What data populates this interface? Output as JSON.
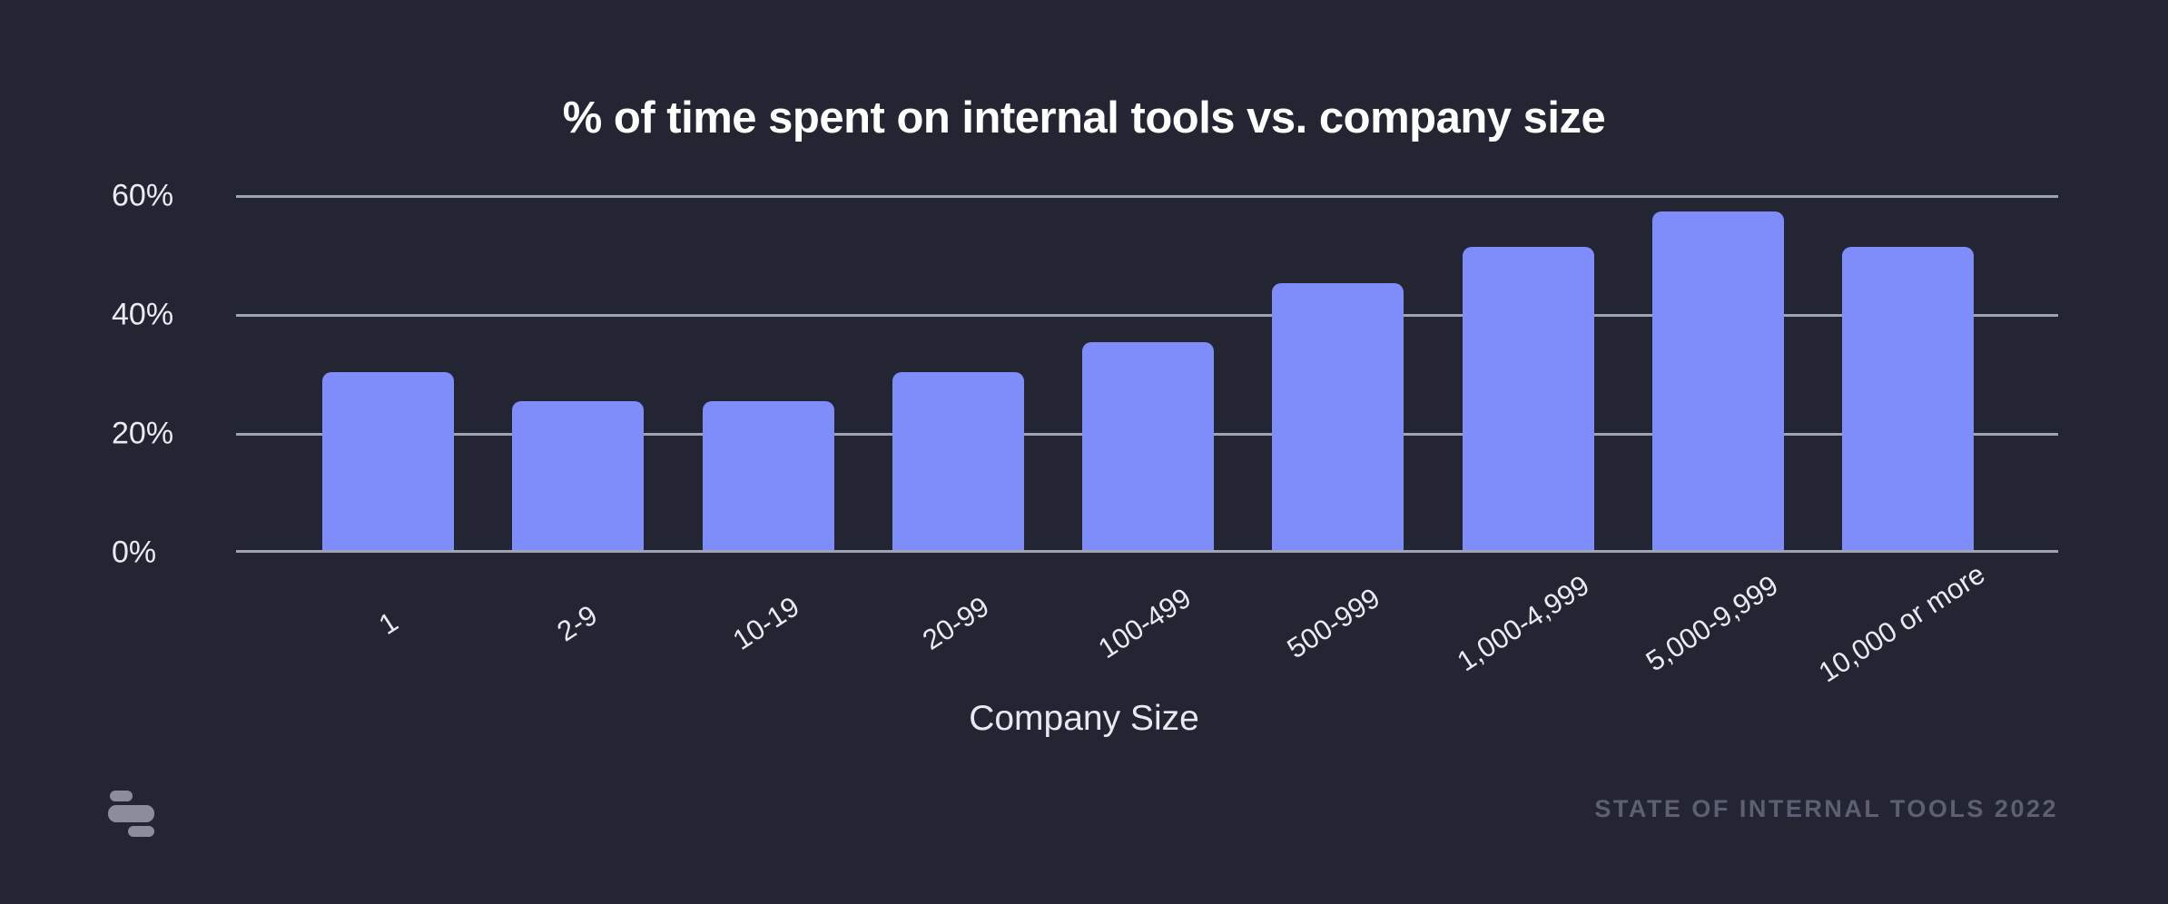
{
  "chart_data": {
    "type": "bar",
    "title": "% of time spent on internal tools vs. company size",
    "xlabel": "Company Size",
    "ylabel": "",
    "categories": [
      "1",
      "2-9",
      "10-19",
      "20-99",
      "100-499",
      "500-999",
      "1,000-4,999",
      "5,000-9,999",
      "10,000 or more"
    ],
    "values": [
      30,
      25,
      25,
      30,
      35,
      45,
      51,
      57,
      51
    ],
    "yticks": [
      {
        "value": 0,
        "label": "0%"
      },
      {
        "value": 20,
        "label": "20%"
      },
      {
        "value": 40,
        "label": "40%"
      },
      {
        "value": 60,
        "label": "60%"
      }
    ],
    "ylim": [
      0,
      68
    ],
    "grid": true,
    "legend": null,
    "bar_color": "#7E8DFA",
    "background_color": "#232532",
    "gridline_color": "#9FA3B6",
    "text_color": "#E9EAF4"
  },
  "footer": {
    "credit": "STATE OF INTERNAL TOOLS 2022",
    "logo_icon": "retool-logo"
  }
}
